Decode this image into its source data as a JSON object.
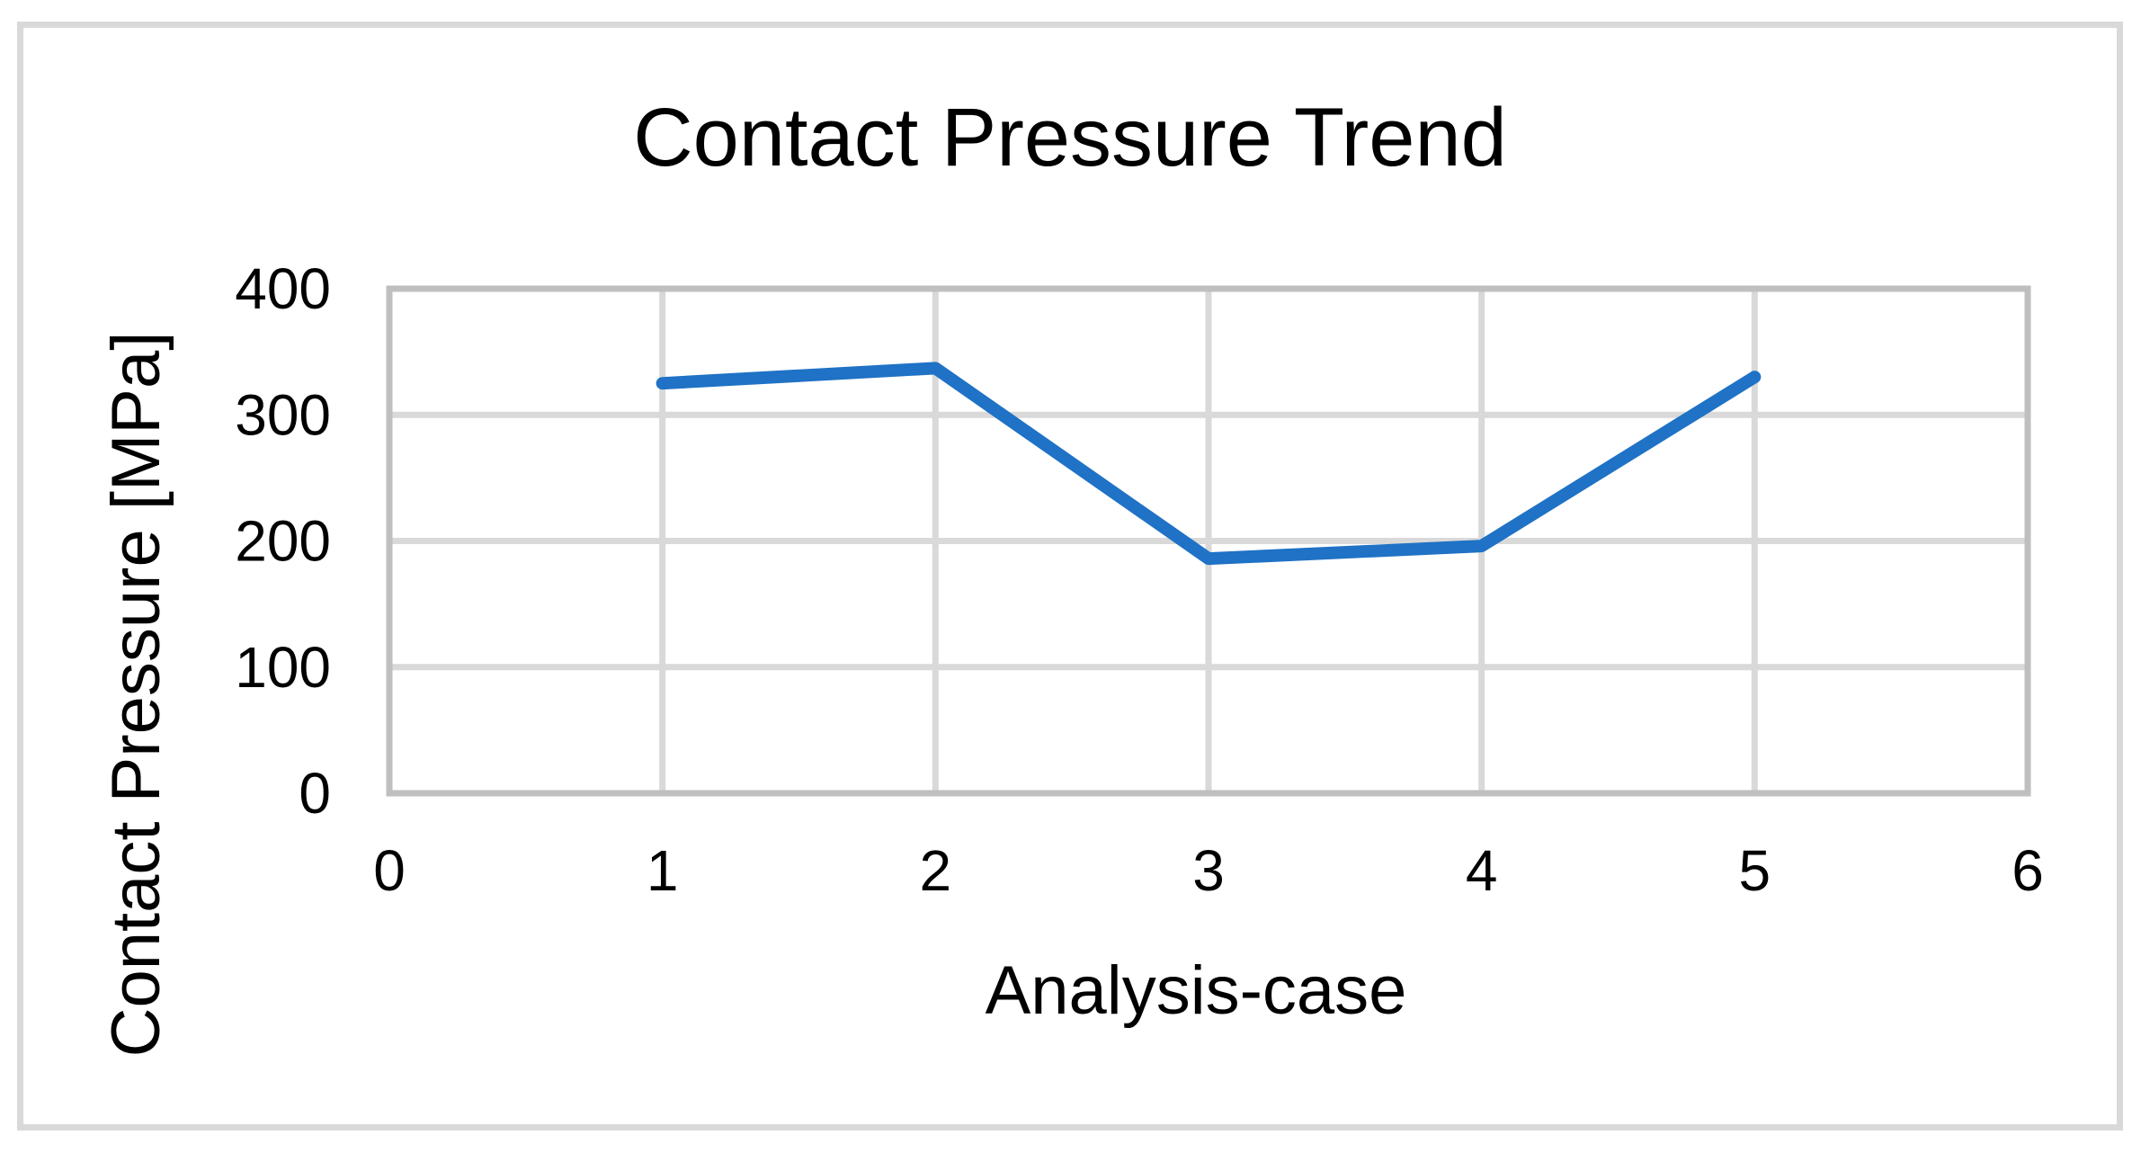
{
  "chart_data": {
    "type": "line",
    "title": "Contact Pressure Trend",
    "xlabel": "Analysis-case",
    "ylabel": "Contact Pressure [MPa]",
    "x": [
      1,
      2,
      3,
      4,
      5
    ],
    "y": [
      325,
      337,
      186,
      196,
      330
    ],
    "xlim": [
      0,
      6
    ],
    "ylim": [
      0,
      400
    ],
    "xticks": [
      0,
      1,
      2,
      3,
      4,
      5,
      6
    ],
    "yticks": [
      0,
      100,
      200,
      300,
      400
    ],
    "grid": true,
    "legend": false,
    "line_color": "#1F72C5",
    "gridline_color": "#D9D9D9",
    "plot_border_color": "#BFBFBF",
    "frame_border_color": "#D9D9D9",
    "text_color": "#000000",
    "background_color": "#FFFFFF"
  }
}
